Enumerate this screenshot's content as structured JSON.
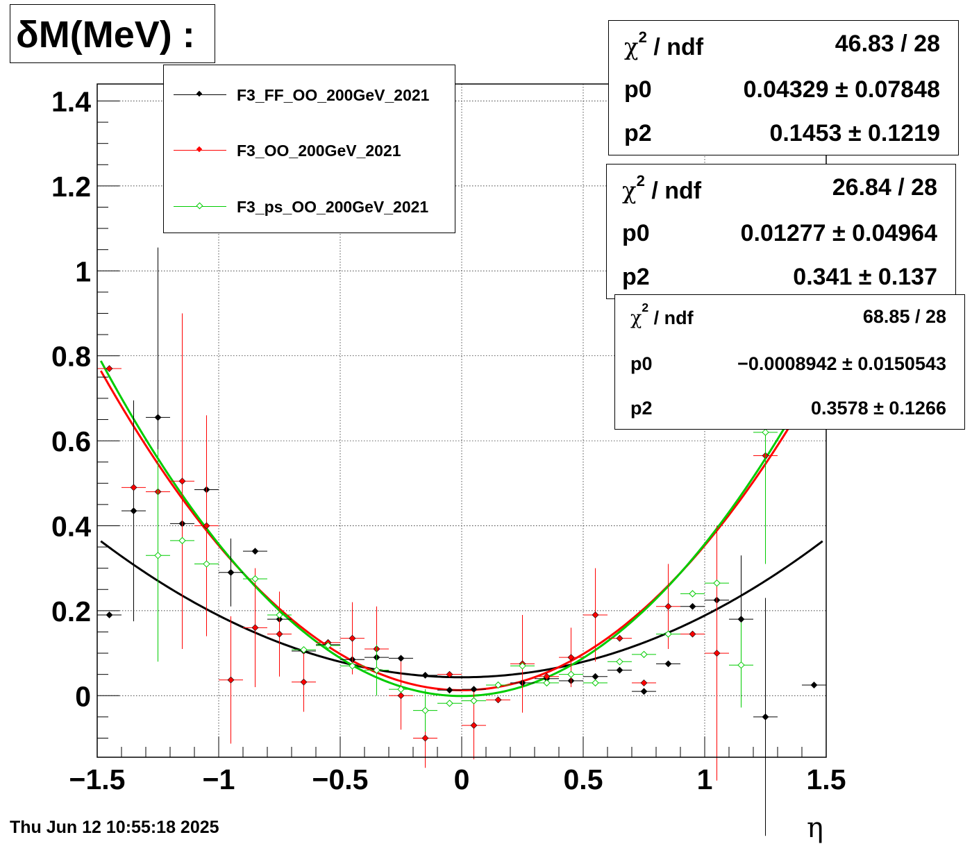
{
  "title": "δM(MeV) :",
  "footer_timestamp": "Thu Jun 12 10:55:18 2025",
  "chart_data": {
    "type": "scatter",
    "xlabel": "η",
    "ylabel": "",
    "xlim": [
      -1.5,
      1.5
    ],
    "ylim": [
      -0.145,
      1.44
    ],
    "x_ticks": [
      -1.5,
      -1,
      -0.5,
      0,
      0.5,
      1,
      1.5
    ],
    "x_tick_labels": [
      "−1.5",
      "−1",
      "−0.5",
      "0",
      "0.5",
      "1",
      "1.5"
    ],
    "y_ticks": [
      0,
      0.2,
      0.4,
      0.6,
      0.8,
      1,
      1.2,
      1.4
    ],
    "y_tick_labels": [
      "0",
      "0.2",
      "0.4",
      "0.6",
      "0.8",
      "1",
      "1.2",
      "1.4"
    ],
    "grid": true,
    "x_bin_halfwidth": 0.05,
    "series": [
      {
        "name": "F3_FF_OO_200GeV_2021",
        "color": "#000000",
        "marker": "filled-diamond",
        "points": [
          {
            "x": -1.45,
            "y": 0.19,
            "err": 0.0
          },
          {
            "x": -1.35,
            "y": 0.435,
            "err": 0.26
          },
          {
            "x": -1.25,
            "y": 0.655,
            "err": 0.4
          },
          {
            "x": -1.15,
            "y": 0.405,
            "err": 0.0
          },
          {
            "x": -1.05,
            "y": 0.485,
            "err": 0.0
          },
          {
            "x": -0.95,
            "y": 0.29,
            "err": 0.08
          },
          {
            "x": -0.85,
            "y": 0.34,
            "err": 0.0
          },
          {
            "x": -0.75,
            "y": 0.18,
            "err": 0.0
          },
          {
            "x": -0.65,
            "y": 0.105,
            "err": 0.0
          },
          {
            "x": -0.55,
            "y": 0.12,
            "err": 0.0
          },
          {
            "x": -0.45,
            "y": 0.085,
            "err": 0.0
          },
          {
            "x": -0.35,
            "y": 0.09,
            "err": 0.0
          },
          {
            "x": -0.25,
            "y": 0.088,
            "err": 0.0
          },
          {
            "x": -0.15,
            "y": 0.048,
            "err": 0.0
          },
          {
            "x": -0.05,
            "y": 0.013,
            "err": 0.0
          },
          {
            "x": 0.05,
            "y": 0.015,
            "err": 0.0
          },
          {
            "x": 0.15,
            "y": 0.025,
            "err": 0.0
          },
          {
            "x": 0.25,
            "y": 0.03,
            "err": 0.0
          },
          {
            "x": 0.35,
            "y": 0.04,
            "err": 0.0
          },
          {
            "x": 0.45,
            "y": 0.035,
            "err": 0.0
          },
          {
            "x": 0.55,
            "y": 0.045,
            "err": 0.0
          },
          {
            "x": 0.65,
            "y": 0.06,
            "err": 0.0
          },
          {
            "x": 0.75,
            "y": 0.01,
            "err": 0.0
          },
          {
            "x": 0.85,
            "y": 0.075,
            "err": 0.0
          },
          {
            "x": 0.95,
            "y": 0.21,
            "err": 0.0
          },
          {
            "x": 1.05,
            "y": 0.225,
            "err": 0.0
          },
          {
            "x": 1.15,
            "y": 0.18,
            "err": 0.15
          },
          {
            "x": 1.25,
            "y": -0.05,
            "err": 0.28
          },
          {
            "x": 1.45,
            "y": 0.025,
            "err": 0.0
          }
        ]
      },
      {
        "name": "F3_OO_200GeV_2021",
        "color": "#ff0000",
        "marker": "filled-diamond",
        "points": [
          {
            "x": -1.45,
            "y": 0.77,
            "err": 0.0
          },
          {
            "x": -1.35,
            "y": 0.49,
            "err": 0.0
          },
          {
            "x": -1.25,
            "y": 0.48,
            "err": 0.0
          },
          {
            "x": -1.15,
            "y": 0.505,
            "err": 0.395
          },
          {
            "x": -1.05,
            "y": 0.4,
            "err": 0.26
          },
          {
            "x": -0.95,
            "y": 0.037,
            "err": 0.15
          },
          {
            "x": -0.85,
            "y": 0.16,
            "err": 0.14
          },
          {
            "x": -0.75,
            "y": 0.145,
            "err": 0.1
          },
          {
            "x": -0.65,
            "y": 0.032,
            "err": 0.07
          },
          {
            "x": -0.55,
            "y": 0.125,
            "err": 0.0
          },
          {
            "x": -0.45,
            "y": 0.135,
            "err": 0.085
          },
          {
            "x": -0.35,
            "y": 0.11,
            "err": 0.1
          },
          {
            "x": -0.25,
            "y": 0.0,
            "err": 0.08
          },
          {
            "x": -0.15,
            "y": -0.1,
            "err": 0.07
          },
          {
            "x": -0.05,
            "y": 0.05,
            "err": 0.0
          },
          {
            "x": 0.05,
            "y": -0.07,
            "err": 0.08
          },
          {
            "x": 0.15,
            "y": -0.01,
            "err": 0.0
          },
          {
            "x": 0.25,
            "y": 0.075,
            "err": 0.115
          },
          {
            "x": 0.35,
            "y": 0.045,
            "err": 0.0
          },
          {
            "x": 0.45,
            "y": 0.09,
            "err": 0.07
          },
          {
            "x": 0.55,
            "y": 0.19,
            "err": 0.11
          },
          {
            "x": 0.65,
            "y": 0.135,
            "err": 0.0
          },
          {
            "x": 0.75,
            "y": 0.03,
            "err": 0.0
          },
          {
            "x": 0.85,
            "y": 0.21,
            "err": 0.1
          },
          {
            "x": 0.95,
            "y": 0.145,
            "err": 0.0
          },
          {
            "x": 1.05,
            "y": 0.1,
            "err": 0.3
          },
          {
            "x": 1.25,
            "y": 0.565,
            "err": 0.0
          }
        ]
      },
      {
        "name": "F3_ps_OO_200GeV_2021",
        "color": "#00cc00",
        "marker": "open-diamond",
        "points": [
          {
            "x": -1.25,
            "y": 0.33,
            "err": 0.25
          },
          {
            "x": -1.15,
            "y": 0.365,
            "err": 0.0
          },
          {
            "x": -1.05,
            "y": 0.31,
            "err": 0.0
          },
          {
            "x": -0.85,
            "y": 0.275,
            "err": 0.0
          },
          {
            "x": -0.75,
            "y": 0.19,
            "err": 0.0
          },
          {
            "x": -0.65,
            "y": 0.108,
            "err": 0.0
          },
          {
            "x": -0.55,
            "y": 0.118,
            "err": 0.0
          },
          {
            "x": -0.45,
            "y": 0.07,
            "err": 0.0
          },
          {
            "x": -0.35,
            "y": 0.06,
            "err": 0.06
          },
          {
            "x": -0.25,
            "y": 0.015,
            "err": 0.0
          },
          {
            "x": -0.15,
            "y": -0.035,
            "err": 0.05
          },
          {
            "x": -0.05,
            "y": -0.018,
            "err": 0.0
          },
          {
            "x": 0.05,
            "y": -0.012,
            "err": 0.0
          },
          {
            "x": 0.15,
            "y": 0.025,
            "err": 0.0
          },
          {
            "x": 0.25,
            "y": 0.07,
            "err": 0.0
          },
          {
            "x": 0.35,
            "y": 0.03,
            "err": 0.0
          },
          {
            "x": 0.45,
            "y": 0.05,
            "err": 0.0
          },
          {
            "x": 0.55,
            "y": 0.03,
            "err": 0.0
          },
          {
            "x": 0.65,
            "y": 0.08,
            "err": 0.0
          },
          {
            "x": 0.75,
            "y": 0.097,
            "err": 0.0
          },
          {
            "x": 0.85,
            "y": 0.145,
            "err": 0.0
          },
          {
            "x": 0.95,
            "y": 0.24,
            "err": 0.0
          },
          {
            "x": 1.05,
            "y": 0.265,
            "err": 0.0
          },
          {
            "x": 1.15,
            "y": 0.072,
            "err": 0.1
          },
          {
            "x": 1.25,
            "y": 0.62,
            "err": 0.31
          }
        ]
      }
    ],
    "fits": [
      {
        "series": "F3_FF_OO_200GeV_2021",
        "color": "#000000",
        "function": "p0 + p2*x^2",
        "p0": 0.04329,
        "p2": 0.1453,
        "stats": {
          "chi2_label": "/ ndf",
          "chi2_ndf": "46.83 / 28",
          "p0_label": "p0",
          "p0_value": "0.04329 ± 0.07848",
          "p2_label": "p2",
          "p2_value": "0.1453 ± 0.1219"
        }
      },
      {
        "series": "F3_OO_200GeV_2021",
        "color": "#ff0000",
        "function": "p0 + p2*x^2",
        "p0": 0.01277,
        "p2": 0.341,
        "stats": {
          "chi2_label": "/ ndf",
          "chi2_ndf": "26.84 / 28",
          "p0_label": "p0",
          "p0_value": "0.01277 ± 0.04964",
          "p2_label": "p2",
          "p2_value": "0.341 ± 0.137"
        }
      },
      {
        "series": "F3_ps_OO_200GeV_2021",
        "color": "#00cc00",
        "function": "p0 + p2*x^2",
        "p0": -0.0008942,
        "p2": 0.3578,
        "stats": {
          "chi2_label": "/ ndf",
          "chi2_ndf": "68.85 / 28",
          "p0_label": "p0",
          "p0_value": "−0.0008942 ± 0.0150543",
          "p2_label": "p2",
          "p2_value": "0.3578 ± 0.1266"
        }
      }
    ]
  }
}
